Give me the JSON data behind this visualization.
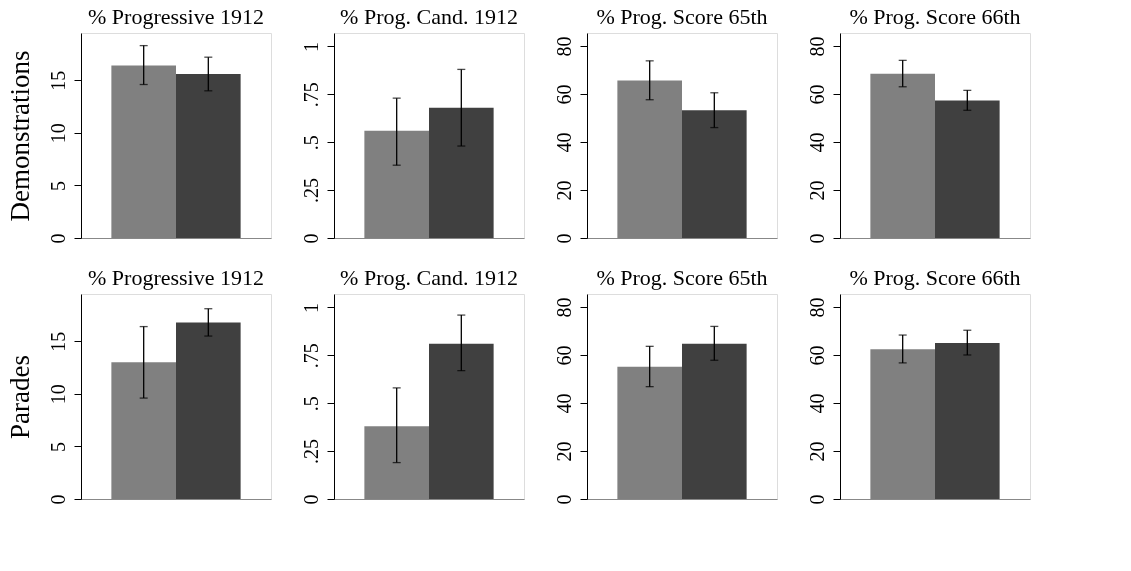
{
  "chart_data": [
    {
      "type": "bar",
      "title": "% Progressive 1912",
      "ylabel": "Demonstrations",
      "categories": [
        null,
        null
      ],
      "values": [
        16.4,
        15.6
      ],
      "colors": [
        "#808080",
        "#404040"
      ],
      "errors": [
        [
          14.6,
          18.3
        ],
        [
          14.0,
          17.2
        ]
      ],
      "ylim": [
        0,
        19.5
      ],
      "yticks": [
        0,
        5,
        10,
        15
      ],
      "tick_labels": "y"
    },
    {
      "type": "bar",
      "title": "% Prog. Cand. 1912",
      "categories": [
        null,
        null
      ],
      "values": [
        0.56,
        0.68
      ],
      "colors": [
        "#808080",
        "#404040"
      ],
      "errors": [
        [
          0.38,
          0.73
        ],
        [
          0.48,
          0.88
        ]
      ],
      "ylim": [
        0,
        1.07
      ],
      "yticks": [
        0,
        {
          "value": 0.25,
          "label": ".25"
        },
        {
          "value": 0.5,
          "label": ".5"
        },
        {
          "value": 0.75,
          "label": ".75"
        },
        1
      ],
      "tick_labels": "y"
    },
    {
      "type": "bar",
      "title": "% Prog. Score 65th",
      "categories": [
        null,
        null
      ],
      "values": [
        65.6,
        53.2
      ],
      "colors": [
        "#808080",
        "#404040"
      ],
      "errors": [
        [
          57.6,
          73.8
        ],
        [
          46,
          60.5
        ]
      ],
      "ylim": [
        0,
        85.4
      ],
      "yticks": [
        0,
        20,
        40,
        60,
        80
      ],
      "tick_labels": "y"
    },
    {
      "type": "bar",
      "title": "% Prog. Score 66th",
      "categories": [
        null,
        null
      ],
      "values": [
        68.4,
        57.3
      ],
      "colors": [
        "#808080",
        "#404040"
      ],
      "errors": [
        [
          63,
          74
        ],
        [
          53.2,
          61.5
        ]
      ],
      "ylim": [
        0,
        85.4
      ],
      "yticks": [
        0,
        20,
        40,
        60,
        80
      ],
      "tick_labels": "y"
    },
    {
      "type": "bar",
      "title": "% Progressive 1912",
      "ylabel": "Parades",
      "categories": [
        null,
        null
      ],
      "values": [
        13.0,
        16.8
      ],
      "colors": [
        "#808080",
        "#404040"
      ],
      "errors": [
        [
          9.6,
          16.4
        ],
        [
          15.5,
          18.1
        ]
      ],
      "ylim": [
        0,
        19.5
      ],
      "yticks": [
        0,
        5,
        10,
        15
      ],
      "tick_labels": "y"
    },
    {
      "type": "bar",
      "title": "% Prog. Cand. 1912",
      "categories": [
        null,
        null
      ],
      "values": [
        0.38,
        0.81
      ],
      "colors": [
        "#808080",
        "#404040"
      ],
      "errors": [
        [
          0.19,
          0.58
        ],
        [
          0.67,
          0.96
        ]
      ],
      "ylim": [
        0,
        1.07
      ],
      "yticks": [
        0,
        {
          "value": 0.25,
          "label": ".25"
        },
        {
          "value": 0.5,
          "label": ".5"
        },
        {
          "value": 0.75,
          "label": ".75"
        },
        1
      ],
      "tick_labels": "y"
    },
    {
      "type": "bar",
      "title": "% Prog. Score 65th",
      "categories": [
        null,
        null
      ],
      "values": [
        55.1,
        64.7
      ],
      "colors": [
        "#808080",
        "#404040"
      ],
      "errors": [
        [
          46.8,
          63.6
        ],
        [
          57.8,
          71.9
        ]
      ],
      "ylim": [
        0,
        85.4
      ],
      "yticks": [
        0,
        20,
        40,
        60,
        80
      ],
      "tick_labels": "y"
    },
    {
      "type": "bar",
      "title": "% Prog. Score 66th",
      "categories": [
        null,
        null
      ],
      "values": [
        62.4,
        65.0
      ],
      "colors": [
        "#808080",
        "#404040"
      ],
      "errors": [
        [
          56.7,
          68.3
        ],
        [
          60,
          70.3
        ]
      ],
      "ylim": [
        0,
        85.4
      ],
      "yticks": [
        0,
        20,
        40,
        60,
        80
      ],
      "tick_labels": "y"
    }
  ]
}
